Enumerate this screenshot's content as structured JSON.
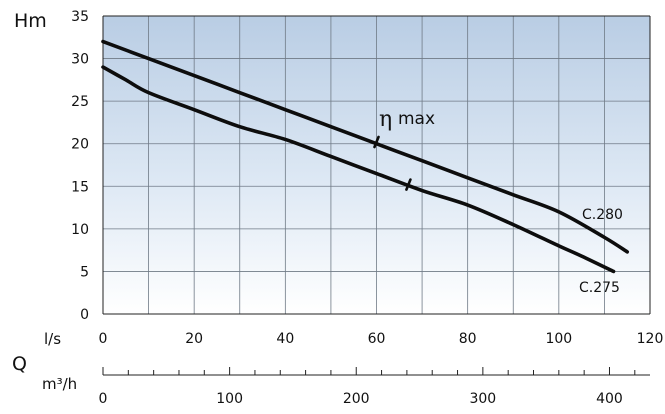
{
  "chart_data": {
    "type": "line",
    "ylabel": "Hm",
    "qlabel": "Q",
    "x_unit_flow": "l/s",
    "x_unit_volume": "m³/h",
    "xlim": [
      0,
      120
    ],
    "ylim": [
      0,
      35
    ],
    "xticks": [
      0,
      20,
      40,
      60,
      80,
      100,
      120
    ],
    "yticks": [
      0,
      5,
      10,
      15,
      20,
      25,
      30,
      35
    ],
    "m3h_ticks": [
      0,
      100,
      200,
      300,
      400
    ],
    "grid": true,
    "series": [
      {
        "name": "C.280",
        "x": [
          0,
          10,
          20,
          30,
          40,
          50,
          60,
          70,
          80,
          90,
          100,
          110,
          115
        ],
        "y": [
          32.0,
          30.0,
          28.0,
          26.0,
          24.0,
          22.0,
          20.0,
          18.0,
          16.0,
          14.0,
          12.0,
          9.0,
          7.3
        ]
      },
      {
        "name": "C.275",
        "x": [
          0,
          5,
          10,
          20,
          30,
          40,
          50,
          60,
          70,
          80,
          90,
          100,
          105,
          112
        ],
        "y": [
          29.0,
          27.5,
          26.0,
          24.0,
          22.0,
          20.5,
          18.5,
          16.5,
          14.5,
          12.8,
          10.5,
          8.0,
          6.8,
          5.0
        ]
      }
    ],
    "annotations": [
      {
        "text": "η",
        "subtext": "max"
      }
    ],
    "eta_max_points": [
      {
        "series": "C.280",
        "x": 60,
        "y": 20.2
      },
      {
        "series": "C.275",
        "x": 67,
        "y": 15.2
      }
    ]
  }
}
